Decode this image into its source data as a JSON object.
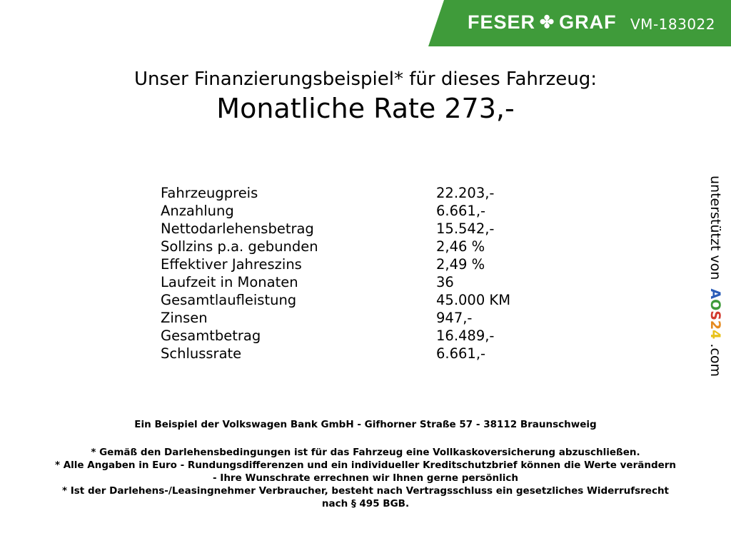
{
  "header": {
    "brand_left": "FESER",
    "brand_right": "GRAF",
    "brand_icon": "clover-icon",
    "vehicle_id": "VM-183022",
    "color": "#3f9b3a"
  },
  "title": "Unser Finanzierungsbeispiel* für dieses Fahrzeug:",
  "subtitle": "Monatliche Rate 273,-",
  "rows": [
    {
      "label": "Fahrzeugpreis",
      "value": "22.203,-"
    },
    {
      "label": "Anzahlung",
      "value": "6.661,-"
    },
    {
      "label": "Nettodarlehensbetrag",
      "value": "15.542,-"
    },
    {
      "label": "Sollzins p.a. gebunden",
      "value": "2,46 %"
    },
    {
      "label": "Effektiver Jahreszins",
      "value": "2,49 %"
    },
    {
      "label": "Laufzeit in Monaten",
      "value": "36"
    },
    {
      "label": "Gesamtlaufleistung",
      "value": "45.000 KM"
    },
    {
      "label": "Zinsen",
      "value": "947,-"
    },
    {
      "label": "Gesamtbetrag",
      "value": "16.489,-"
    },
    {
      "label": "Schlussrate",
      "value": "6.661,-"
    }
  ],
  "side": {
    "text": "unterstützt von",
    "logo": [
      "A",
      "O",
      "S",
      "2",
      "4"
    ],
    "suffix": ".com"
  },
  "footer": {
    "bank": "Ein Beispiel der Volkswagen Bank GmbH - Gifhorner Straße 57 - 38112 Braunschweig",
    "notes": [
      "* Gemäß den Darlehensbedingungen ist für das Fahrzeug eine Vollkaskoversicherung abzuschließen.",
      "* Alle Angaben in Euro - Rundungsdifferenzen und ein individueller Kreditschutzbrief können die Werte verändern",
      "- Ihre Wunschrate errechnen wir Ihnen gerne persönlich",
      "* Ist der Darlehens-/Leasingnehmer Verbraucher, besteht nach Vertragsschluss ein gesetzliches Widerrufsrecht",
      "nach § 495 BGB."
    ]
  }
}
